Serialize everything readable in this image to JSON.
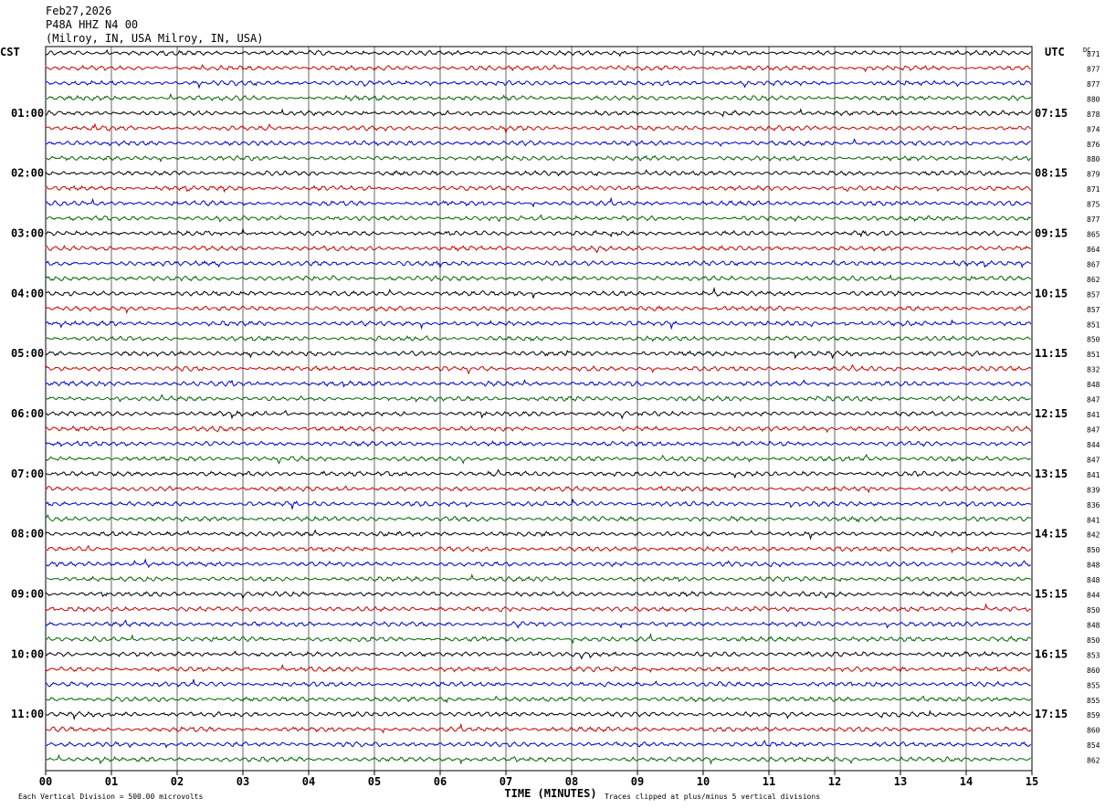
{
  "header": {
    "date": "Feb27,2026",
    "station": "P48A HHZ N4 00",
    "location": "(Milroy, IN, USA Milroy, IN, USA)"
  },
  "chart_data": {
    "type": "line",
    "left_tz": "CST",
    "right_tz": "UTC",
    "dc_label": "DC",
    "xlabel": "TIME (MINUTES)",
    "xlim": [
      0,
      15
    ],
    "x_ticks": [
      "00",
      "01",
      "02",
      "03",
      "04",
      "05",
      "06",
      "07",
      "08",
      "09",
      "10",
      "11",
      "12",
      "13",
      "14",
      "15"
    ],
    "left_hours": [
      "01:00",
      "02:00",
      "03:00",
      "04:00",
      "05:00",
      "06:00",
      "07:00",
      "08:00",
      "09:00",
      "10:00",
      "11:00"
    ],
    "right_hours": [
      "07:15",
      "08:15",
      "09:15",
      "10:15",
      "11:15",
      "12:15",
      "13:15",
      "14:15",
      "15:15",
      "16:15",
      "17:15"
    ],
    "trace_colors": [
      "#000000",
      "#cc0000",
      "#0000cc",
      "#006600"
    ],
    "dc_offsets": [
      871,
      877,
      877,
      880,
      878,
      874,
      876,
      880,
      879,
      871,
      875,
      877,
      865,
      864,
      867,
      862,
      857,
      857,
      851,
      850,
      851,
      832,
      848,
      847,
      841,
      847,
      844,
      847,
      841,
      839,
      836,
      841,
      842,
      850,
      848,
      848,
      844,
      850,
      848,
      850,
      853,
      860,
      855,
      855,
      859,
      860,
      854,
      862
    ],
    "footer": {
      "scale": "Each Vertical Division =   500.00 microvolts",
      "clip": "Traces clipped at plus/minus 5 vertical divisions"
    }
  }
}
